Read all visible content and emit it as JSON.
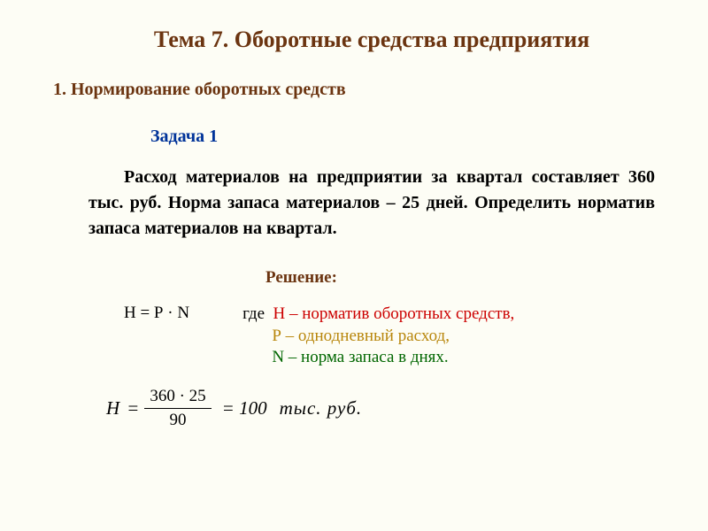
{
  "title": "Тема 7. Оборотные средства предприятия",
  "section_heading": "1. Нормирование  оборотных средств",
  "problem_label": "Задача 1",
  "problem_text": "Расход материалов на предприятии за квартал составляет 360 тыс. руб. Норма запаса материалов – 25 дней. Определить норматив запаса материалов на квартал.",
  "solution_label": "Решение:",
  "formula": "Н = Р · N",
  "where_word": "где",
  "legend": {
    "h": "Н – норматив оборотных средств,",
    "p": "Р – однодневный расход,",
    "n": "N – норма запаса в днях."
  },
  "calc": {
    "lhs": "H",
    "numerator": "360 · 25",
    "denominator": "90",
    "result": "= 100",
    "unit": "тыс.  руб."
  },
  "colors": {
    "heading": "#6b3410",
    "problem": "#003399",
    "var_h": "#cc0000",
    "var_p": "#b8860b",
    "var_n": "#006600",
    "background": "#fdfdf5"
  }
}
